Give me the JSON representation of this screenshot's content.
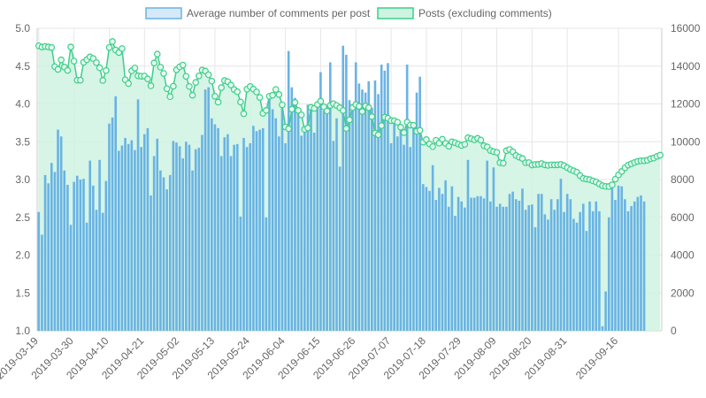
{
  "colors": {
    "bar_fill": "#6ab3e3",
    "bar_legend_fill": "#d5e9f8",
    "bar_legend_stroke": "#6ab3e3",
    "line_stroke": "#3ccf8a",
    "line_fill": "#cff3e2",
    "grid": "#e6e6e6",
    "text": "#666666"
  },
  "chart_data": {
    "type": "bar",
    "legend_position": "top-center",
    "grid": true,
    "series": [
      {
        "name": "Average number of comments per post",
        "type": "bar",
        "axis": "left",
        "values": [
          2.57,
          2.27,
          3.06,
          2.95,
          3.22,
          3.1,
          3.66,
          3.57,
          3.12,
          2.93,
          2.4,
          2.97,
          3.05,
          3.0,
          3.01,
          2.43,
          3.25,
          2.92,
          2.6,
          3.26,
          2.56,
          2.98,
          3.74,
          3.82,
          4.1,
          3.38,
          3.45,
          3.55,
          3.47,
          3.52,
          3.39,
          4.06,
          3.43,
          3.6,
          3.68,
          2.79,
          3.31,
          3.54,
          3.12,
          3.03,
          2.87,
          3.06,
          3.51,
          3.49,
          3.44,
          3.28,
          3.5,
          3.46,
          3.12,
          3.4,
          3.42,
          3.59,
          4.19,
          4.22,
          3.81,
          3.73,
          3.68,
          3.31,
          3.56,
          3.6,
          3.31,
          3.46,
          3.47,
          2.51,
          3.55,
          3.43,
          3.48,
          3.71,
          3.64,
          3.66,
          3.68,
          2.5,
          4.06,
          3.93,
          3.81,
          3.57,
          3.99,
          3.48,
          4.7,
          4.22,
          4.08,
          3.95,
          3.58,
          3.66,
          3.99,
          3.92,
          3.62,
          4.0,
          4.42,
          3.91,
          3.97,
          4.55,
          3.51,
          3.81,
          3.17,
          4.77,
          4.65,
          4.05,
          3.92,
          4.55,
          4.27,
          4.19,
          4.15,
          4.3,
          3.95,
          4.31,
          4.13,
          4.52,
          4.44,
          4.54,
          3.48,
          3.74,
          3.57,
          3.67,
          3.46,
          4.52,
          3.43,
          3.75,
          4.15,
          4.36,
          2.94,
          2.9,
          2.85,
          3.19,
          2.73,
          2.89,
          2.81,
          2.99,
          2.64,
          2.91,
          2.52,
          2.77,
          2.71,
          2.63,
          3.26,
          2.76,
          2.76,
          2.78,
          2.78,
          2.75,
          3.25,
          2.71,
          3.16,
          2.64,
          2.68,
          2.64,
          2.64,
          2.81,
          2.84,
          2.74,
          2.72,
          2.88,
          2.6,
          2.66,
          2.67,
          2.37,
          2.81,
          2.81,
          2.54,
          2.47,
          2.74,
          2.6,
          2.74,
          3.01,
          2.57,
          2.81,
          2.74,
          2.48,
          2.43,
          2.57,
          2.68,
          2.32,
          2.71,
          2.58,
          2.71,
          2.58,
          1.06,
          1.52,
          2.5,
          2.95,
          2.73,
          2.92,
          2.91,
          2.74,
          2.58,
          2.65,
          2.71,
          2.77,
          2.79,
          2.71
        ]
      },
      {
        "name": "Posts (excluding comments)",
        "type": "area-line",
        "axis": "right",
        "values": [
          15075,
          15008,
          15041,
          15014,
          14986,
          13972,
          13827,
          14330,
          13951,
          13775,
          15015,
          14262,
          13255,
          13256,
          14201,
          14340,
          14486,
          14404,
          14187,
          13913,
          13241,
          13766,
          14987,
          15300,
          14849,
          14722,
          14929,
          13279,
          13081,
          13750,
          13900,
          13488,
          13467,
          13473,
          13324,
          12960,
          14165,
          14634,
          13942,
          13613,
          12806,
          12387,
          12937,
          13803,
          13965,
          14057,
          13461,
          12924,
          12460,
          13138,
          13484,
          13791,
          13740,
          13544,
          13211,
          12407,
          12095,
          12863,
          13235,
          13176,
          12996,
          12764,
          12645,
          12103,
          11483,
          12782,
          12919,
          12786,
          12632,
          12345,
          11501,
          11658,
          12409,
          12458,
          12766,
          12499,
          11953,
          10785,
          10686,
          11723,
          12079,
          11657,
          11420,
          10653,
          10728,
          11815,
          11761,
          11970,
          12141,
          11848,
          11626,
          11921,
          12011,
          11917,
          11798,
          11654,
          10699,
          11158,
          11808,
          11966,
          11874,
          11599,
          11891,
          11803,
          11331,
          10465,
          10370,
          10854,
          11299,
          11243,
          11115,
          11113,
          11035,
          10770,
          10484,
          11039,
          10877,
          10868,
          10549,
          10603,
          9979,
          10114,
          9887,
          9743,
          10075,
          9924,
          10132,
          9913,
          9764,
          9996,
          9946,
          9874,
          9803,
          9861,
          10212,
          10162,
          10104,
          10179,
          10086,
          9787,
          9726,
          9537,
          9477,
          9437,
          8892,
          8871,
          9529,
          9591,
          9468,
          9271,
          9186,
          9115,
          8889,
          8895,
          8769,
          8797,
          8805,
          8846,
          8775,
          8750,
          8778,
          8775,
          8783,
          8797,
          8732,
          8629,
          8531,
          8466,
          8386,
          8208,
          8060,
          8028,
          7995,
          7930,
          7871,
          7770,
          7674,
          7638,
          7633,
          7720,
          8023,
          8246,
          8429,
          8625,
          8766,
          8834,
          8901,
          8961,
          8990,
          8993,
          9021,
          9102,
          9136,
          9228,
          9289
        ]
      }
    ],
    "x_start_date": "2019-03-19",
    "x_tick_labels": [
      "2019-03-19",
      "2019-03-30",
      "2019-04-10",
      "2019-04-21",
      "2019-05-02",
      "2019-05-13",
      "2019-05-24",
      "2019-06-04",
      "2019-06-15",
      "2019-06-26",
      "2019-07-07",
      "2019-07-18",
      "2019-07-29",
      "2019-08-09",
      "2019-08-20",
      "2019-08-31",
      "2019-09-16"
    ],
    "left_axis": {
      "range": [
        1.0,
        5.0
      ],
      "ticks": [
        "1.0",
        "1.5",
        "2.0",
        "2.5",
        "3.0",
        "3.5",
        "4.0",
        "4.5",
        "5.0"
      ]
    },
    "right_axis": {
      "range": [
        0,
        16000
      ],
      "ticks": [
        "0",
        "2000",
        "4000",
        "6000",
        "8000",
        "10000",
        "12000",
        "14000",
        "16000"
      ]
    }
  }
}
